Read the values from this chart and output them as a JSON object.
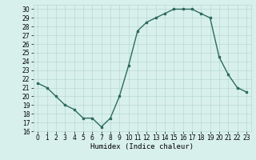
{
  "x": [
    0,
    1,
    2,
    3,
    4,
    5,
    6,
    7,
    8,
    9,
    10,
    11,
    12,
    13,
    14,
    15,
    16,
    17,
    18,
    19,
    20,
    21,
    22,
    23
  ],
  "y": [
    21.5,
    21.0,
    20.0,
    19.0,
    18.5,
    17.5,
    17.5,
    16.5,
    17.5,
    20.0,
    23.5,
    27.5,
    28.5,
    29.0,
    29.5,
    30.0,
    30.0,
    30.0,
    29.5,
    29.0,
    24.5,
    22.5,
    21.0,
    20.5
  ],
  "line_color": "#2e6b5e",
  "marker": "s",
  "markersize": 2.0,
  "bg_color": "#d8f0ec",
  "grid_color": "#b8d8d0",
  "xlabel": "Humidex (Indice chaleur)",
  "xlim": [
    -0.5,
    23.5
  ],
  "ylim": [
    16,
    30.5
  ],
  "yticks": [
    16,
    17,
    18,
    19,
    20,
    21,
    22,
    23,
    24,
    25,
    26,
    27,
    28,
    29,
    30
  ],
  "xticks": [
    0,
    1,
    2,
    3,
    4,
    5,
    6,
    7,
    8,
    9,
    10,
    11,
    12,
    13,
    14,
    15,
    16,
    17,
    18,
    19,
    20,
    21,
    22,
    23
  ],
  "tick_fontsize": 5.5,
  "xlabel_fontsize": 6.5,
  "linewidth": 1.0
}
